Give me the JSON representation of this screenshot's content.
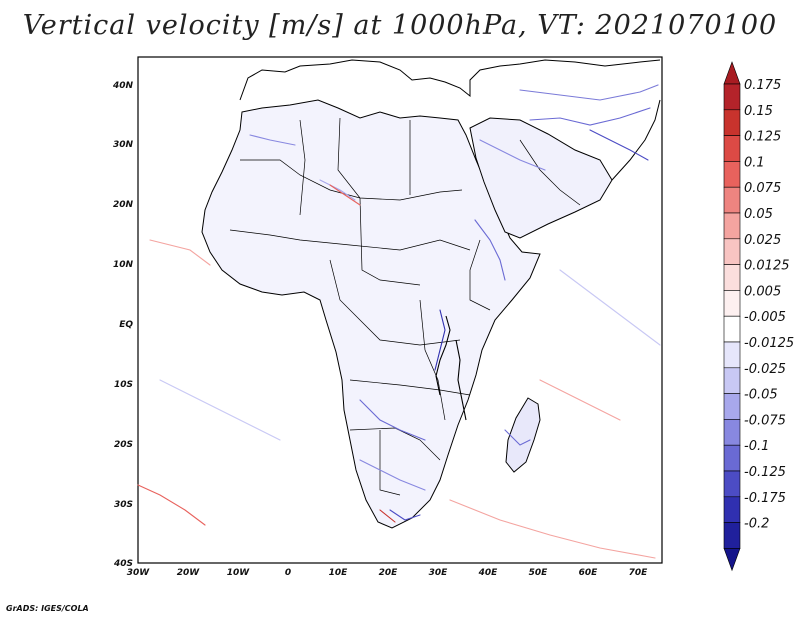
{
  "title": "Vertical velocity [m/s] at 1000hPa, VT: 2021070100",
  "credit": "GrADS: IGES/COLA",
  "map": {
    "lon_range": [
      -30,
      75
    ],
    "lat_range": [
      -40,
      45
    ],
    "lon_ticks": [
      "30W",
      "20W",
      "10W",
      "0",
      "10E",
      "20E",
      "30E",
      "40E",
      "50E",
      "60E",
      "70E"
    ],
    "lat_ticks": [
      "40N",
      "30N",
      "20N",
      "10N",
      "EQ",
      "10S",
      "20S",
      "30S",
      "40S"
    ]
  },
  "colorbar": {
    "levels": [
      {
        "label": "0.175",
        "color": "#b4232a"
      },
      {
        "label": "0.15",
        "color": "#c8332d"
      },
      {
        "label": "0.125",
        "color": "#dc4a45"
      },
      {
        "label": "0.1",
        "color": "#e8625d"
      },
      {
        "label": "0.075",
        "color": "#ee8480"
      },
      {
        "label": "0.05",
        "color": "#f4a4a0"
      },
      {
        "label": "0.025",
        "color": "#f8c4c2"
      },
      {
        "label": "0.0125",
        "color": "#fbdedd"
      },
      {
        "label": "0.005",
        "color": "#fdf0f0"
      },
      {
        "label": "-0.005",
        "color": "#ffffff"
      },
      {
        "label": "-0.0125",
        "color": "#e6e6fb"
      },
      {
        "label": "-0.025",
        "color": "#c8c8f4"
      },
      {
        "label": "-0.05",
        "color": "#a8a8ec"
      },
      {
        "label": "-0.075",
        "color": "#8888e0"
      },
      {
        "label": "-0.1",
        "color": "#6a6ad4"
      },
      {
        "label": "-0.125",
        "color": "#4c4cc4"
      },
      {
        "label": "-0.175",
        "color": "#3030b0"
      },
      {
        "label": "-0.2",
        "color": "#20209c"
      }
    ],
    "top_color": "#a81c22",
    "bottom_color": "#14148a"
  }
}
